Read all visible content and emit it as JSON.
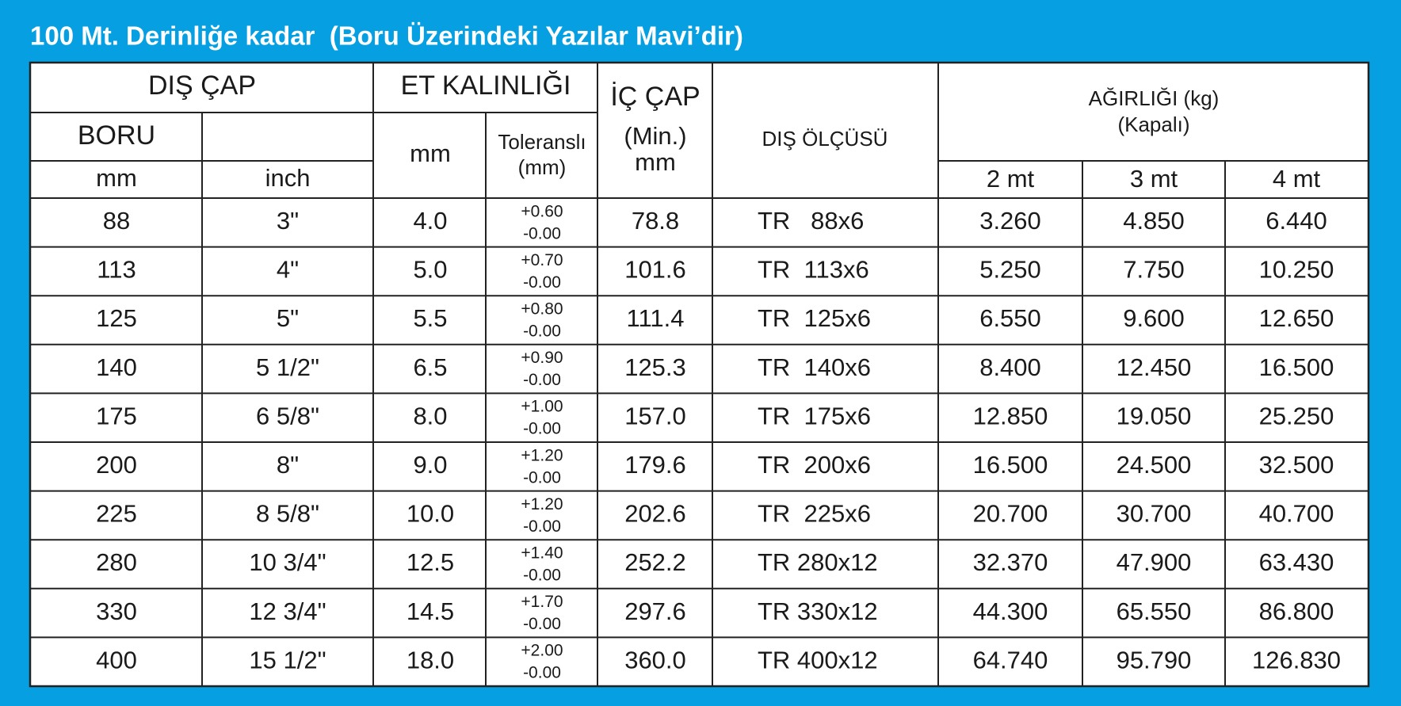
{
  "title": "100 Mt. Derinliğe kadar  (Boru Üzerindeki Yazılar Mavi’dir)",
  "header": {
    "dis_cap": "DIŞ ÇAP",
    "et_kalinligi": "ET KALINLIĞI",
    "boru": "BORU",
    "boru_mm": "mm",
    "boru_inch": "inch",
    "et_mm": "mm",
    "toleransli": [
      "Toleranslı",
      "(mm)"
    ],
    "ic_cap": [
      "İÇ ÇAP",
      "(Min.)",
      "mm"
    ],
    "dis_olcusu": "DIŞ ÖLÇÜSÜ",
    "agirligi": [
      "AĞIRLIĞI (kg)",
      "(Kapalı)"
    ],
    "lengths": [
      "2 mt",
      "3 mt",
      "4 mt"
    ]
  },
  "table": {
    "rows": [
      [
        "88",
        "3\"",
        "4.0",
        "+0.60",
        "-0.00",
        "78.8",
        "TR   88x6",
        "3.260",
        "4.850",
        "6.440"
      ],
      [
        "113",
        "4\"",
        "5.0",
        "+0.70",
        "-0.00",
        "101.6",
        "TR  113x6",
        "5.250",
        "7.750",
        "10.250"
      ],
      [
        "125",
        "5\"",
        "5.5",
        "+0.80",
        "-0.00",
        "111.4",
        "TR  125x6",
        "6.550",
        "9.600",
        "12.650"
      ],
      [
        "140",
        "5 1/2\"",
        "6.5",
        "+0.90",
        "-0.00",
        "125.3",
        "TR  140x6",
        "8.400",
        "12.450",
        "16.500"
      ],
      [
        "175",
        "6 5/8\"",
        "8.0",
        "+1.00",
        "-0.00",
        "157.0",
        "TR  175x6",
        "12.850",
        "19.050",
        "25.250"
      ],
      [
        "200",
        "8\"",
        "9.0",
        "+1.20",
        "-0.00",
        "179.6",
        "TR  200x6",
        "16.500",
        "24.500",
        "32.500"
      ],
      [
        "225",
        "8 5/8\"",
        "10.0",
        "+1.20",
        "-0.00",
        "202.6",
        "TR  225x6",
        "20.700",
        "30.700",
        "40.700"
      ],
      [
        "280",
        "10 3/4\"",
        "12.5",
        "+1.40",
        "-0.00",
        "252.2",
        "TR 280x12",
        "32.370",
        "47.900",
        "63.430"
      ],
      [
        "330",
        "12 3/4\"",
        "14.5",
        "+1.70",
        "-0.00",
        "297.6",
        "TR 330x12",
        "44.300",
        "65.550",
        "86.800"
      ],
      [
        "400",
        "15 1/2\"",
        "18.0",
        "+2.00",
        "-0.00",
        "360.0",
        "TR 400x12",
        "64.740",
        "95.790",
        "126.830"
      ]
    ]
  }
}
